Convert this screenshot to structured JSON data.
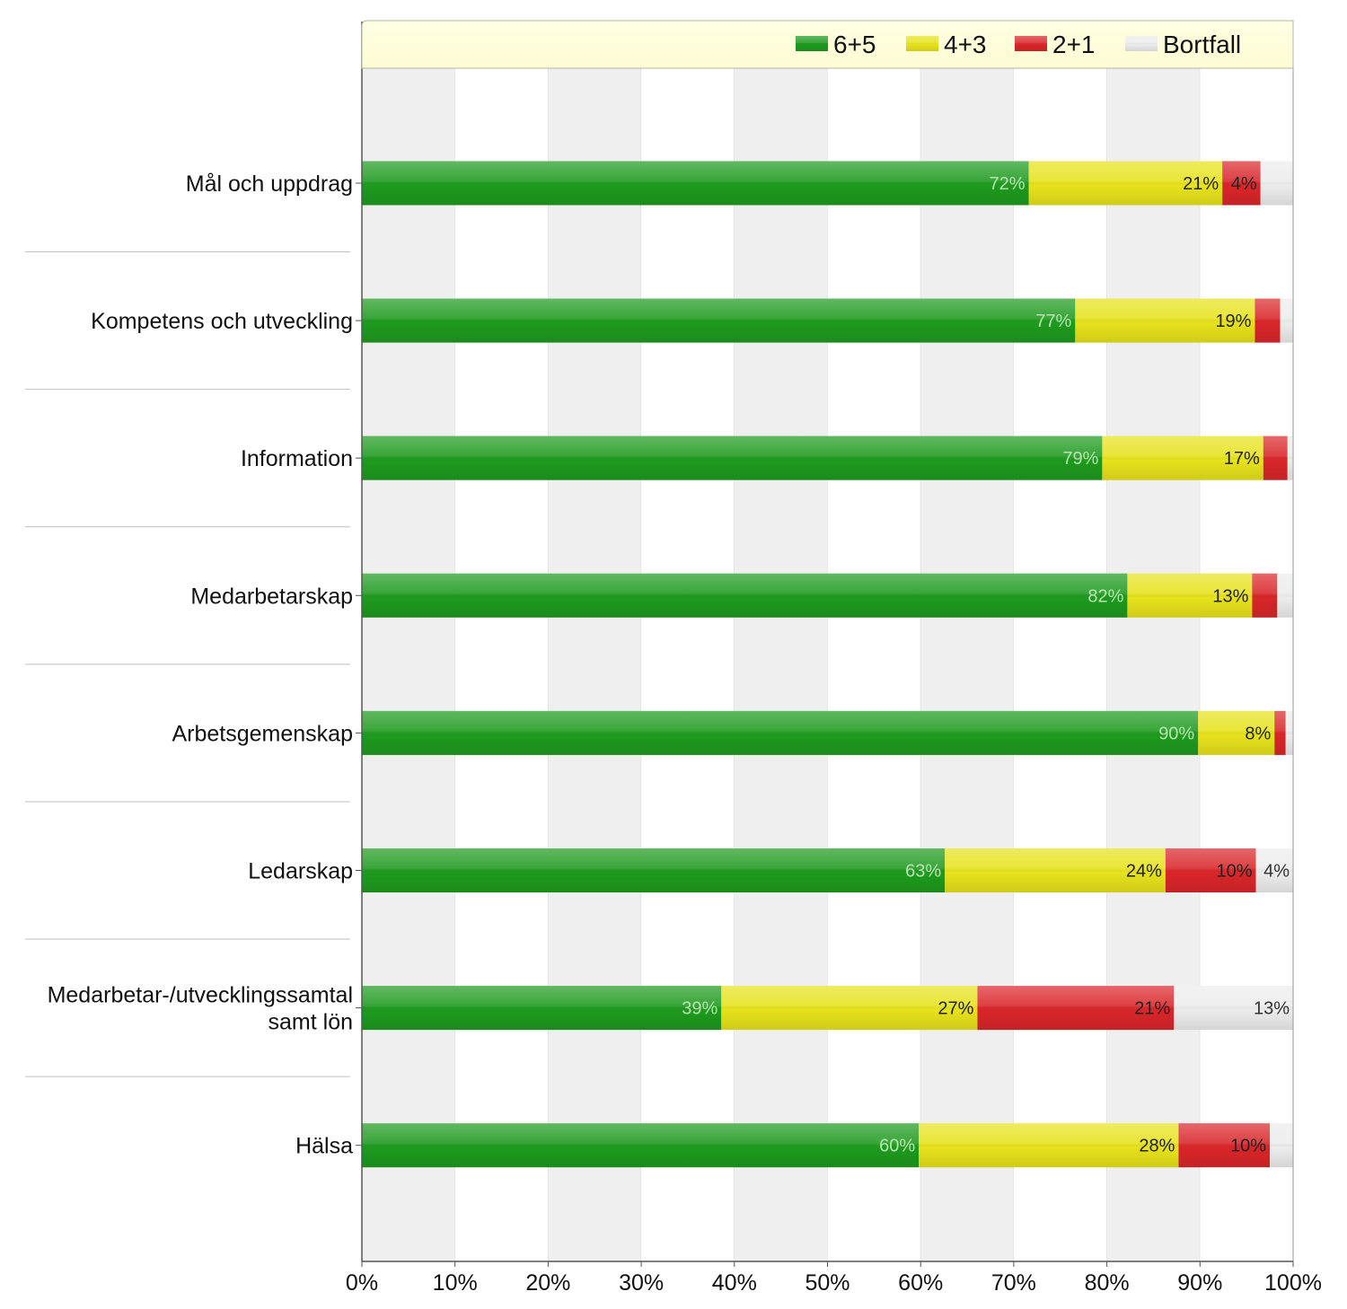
{
  "chart_data": {
    "type": "bar",
    "orientation": "horizontal",
    "stacked": true,
    "categories": [
      "Mål och uppdrag",
      "Kompetens och utveckling",
      "Information",
      "Medarbetarskap",
      "Arbetsgemenskap",
      "Ledarskap",
      "Medarbetar-/utvecklingssamtal samt lön",
      "Hälsa"
    ],
    "series": [
      {
        "name": "6+5",
        "color": "#1e9a1e",
        "values": [
          71.6,
          76.6,
          79.5,
          82.2,
          89.8,
          62.6,
          38.6,
          59.8
        ],
        "labels": [
          "72%",
          "77%",
          "79%",
          "82%",
          "90%",
          "63%",
          "39%",
          "60%"
        ]
      },
      {
        "name": "4+3",
        "color": "#e6e21c",
        "values": [
          20.8,
          19.3,
          17.3,
          13.4,
          8.2,
          23.7,
          27.5,
          27.9
        ],
        "labels": [
          "21%",
          "19%",
          "17%",
          "13%",
          "8%",
          "24%",
          "27%",
          "28%"
        ]
      },
      {
        "name": "2+1",
        "color": "#d9262a",
        "values": [
          4.1,
          2.7,
          2.6,
          2.7,
          1.2,
          9.7,
          21.1,
          9.8
        ],
        "labels": [
          "4%",
          "",
          "",
          "",
          "",
          "10%",
          "21%",
          "10%"
        ]
      },
      {
        "name": "Bortfall",
        "color": "#ececec",
        "values": [
          3.5,
          1.4,
          0.6,
          1.7,
          0.8,
          4.0,
          12.8,
          2.5
        ],
        "labels": [
          "",
          "",
          "",
          "",
          "",
          "4%",
          "13%",
          ""
        ]
      }
    ],
    "xlim": [
      0,
      100
    ],
    "xticks": [
      "0%",
      "10%",
      "20%",
      "30%",
      "40%",
      "50%",
      "60%",
      "70%",
      "80%",
      "90%",
      "100%"
    ],
    "xlabel": "",
    "ylabel": "",
    "title": "",
    "legend_position": "top",
    "grid": "alternating vertical bands"
  }
}
